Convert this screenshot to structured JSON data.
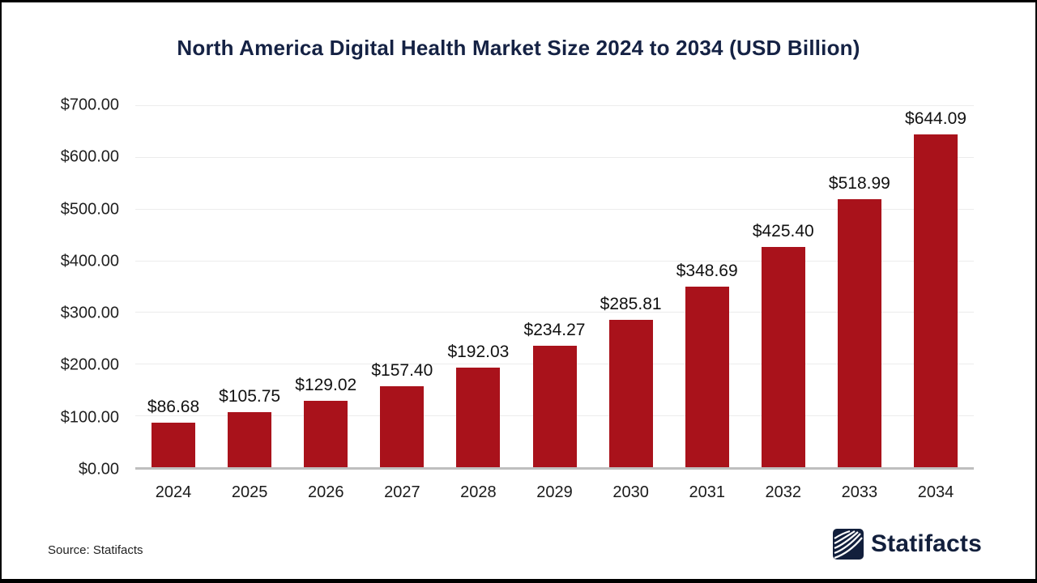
{
  "colors": {
    "navy": "#152244",
    "bar_red": "#a9121b",
    "gridline": "#ececec",
    "baseline": "#bfbfbf",
    "axis_text": "#212121",
    "value_text": "#111111"
  },
  "chart_data": {
    "type": "bar",
    "title": "North America Digital Health Market Size 2024 to 2034 (USD Billion)",
    "xlabel": "",
    "ylabel": "",
    "categories": [
      "2024",
      "2025",
      "2026",
      "2027",
      "2028",
      "2029",
      "2030",
      "2031",
      "2032",
      "2033",
      "2034"
    ],
    "values": [
      86.68,
      105.75,
      129.02,
      157.4,
      192.03,
      234.27,
      285.81,
      348.69,
      425.4,
      518.99,
      644.09
    ],
    "value_labels": [
      "$86.68",
      "$105.75",
      "$129.02",
      "$157.40",
      "$192.03",
      "$234.27",
      "$285.81",
      "$348.69",
      "$425.40",
      "$518.99",
      "$644.09"
    ],
    "ylim": [
      0,
      700
    ],
    "yticks": [
      {
        "label": "$700.00",
        "value": 700
      },
      {
        "label": "$600.00",
        "value": 600
      },
      {
        "label": "$500.00",
        "value": 500
      },
      {
        "label": "$400.00",
        "value": 400
      },
      {
        "label": "$300.00",
        "value": 300
      },
      {
        "label": "$200.00",
        "value": 200
      },
      {
        "label": "$100.00",
        "value": 100
      },
      {
        "label": "$0.00",
        "value": 0
      }
    ],
    "grid": true,
    "legend": false,
    "bar_color": "#a9121b"
  },
  "footer": {
    "source": "Source: Statifacts",
    "brand_name": "Statifacts"
  }
}
